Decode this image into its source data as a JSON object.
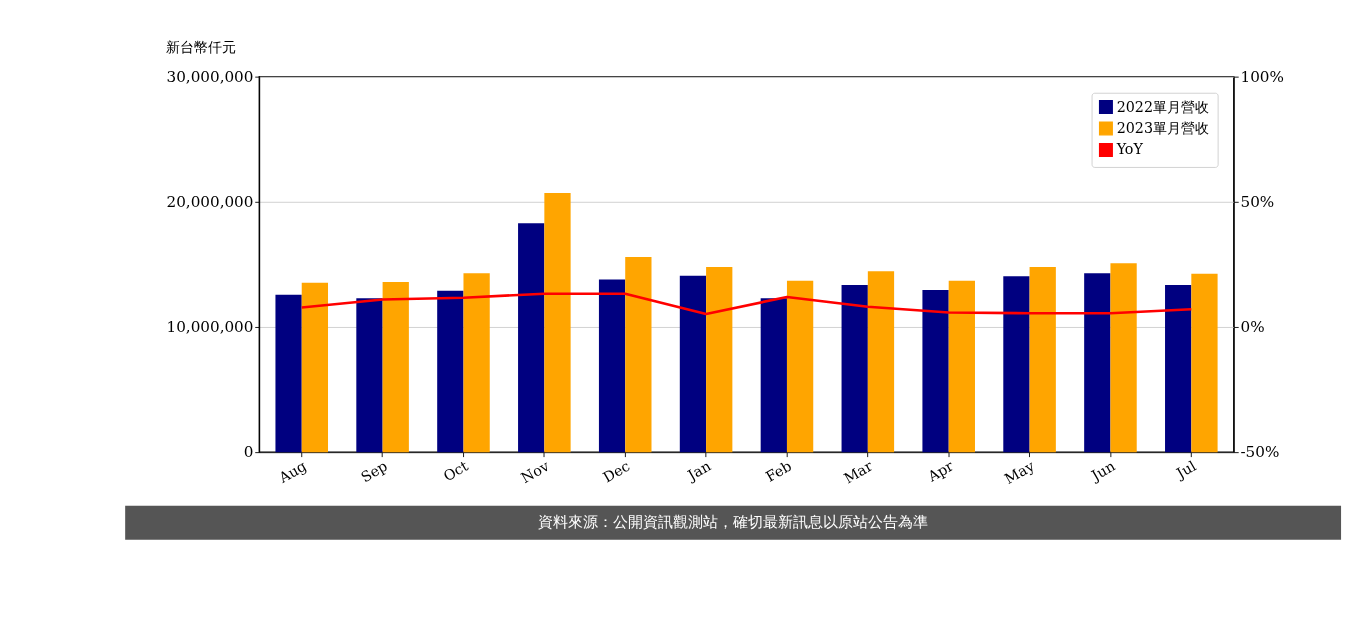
{
  "chart_data": {
    "type": "bar",
    "ylabel": "新台幣仟元",
    "categories": [
      "Aug",
      "Sep",
      "Oct",
      "Nov",
      "Dec",
      "Jan",
      "Feb",
      "Mar",
      "Apr",
      "May",
      "Jun",
      "Jul"
    ],
    "series": [
      {
        "name": "2022單月營收",
        "color": "#000080",
        "values": [
          12570000,
          12300000,
          12900000,
          18300000,
          13800000,
          14100000,
          12300000,
          13350000,
          12950000,
          14050000,
          14300000,
          13350000
        ]
      },
      {
        "name": "2023單月營收",
        "color": "#ffa500",
        "values": [
          13540000,
          13600000,
          14300000,
          20700000,
          15600000,
          14800000,
          13700000,
          14450000,
          13700000,
          14800000,
          15100000,
          14250000
        ]
      },
      {
        "name": "YoY",
        "type": "line",
        "axis": "y2",
        "color": "#ff0000",
        "values": [
          7.8,
          11.0,
          11.7,
          13.3,
          13.3,
          5.2,
          12.0,
          8.1,
          5.8,
          5.5,
          5.5,
          7.1
        ]
      }
    ],
    "ylim": [
      0,
      30000000
    ],
    "yticks": [
      0,
      {
        "value": 10000000,
        "label": "10,000,000"
      },
      {
        "value": 20000000,
        "label": "20,000,000"
      },
      {
        "value": 30000000,
        "label": "30,000,000"
      }
    ],
    "y2lim": [
      -50,
      100
    ],
    "y2ticks": [
      {
        "value": -50,
        "label": "-50%"
      },
      {
        "value": 0,
        "label": "0%"
      },
      {
        "value": 50,
        "label": "50%"
      },
      {
        "value": 100,
        "label": "100%"
      }
    ],
    "grid": "y",
    "legend": "top right",
    "line_style": "solid",
    "annotations": [
      "資料來源：公開資訊觀測站，確切最新訊息以原站公告為準"
    ]
  }
}
